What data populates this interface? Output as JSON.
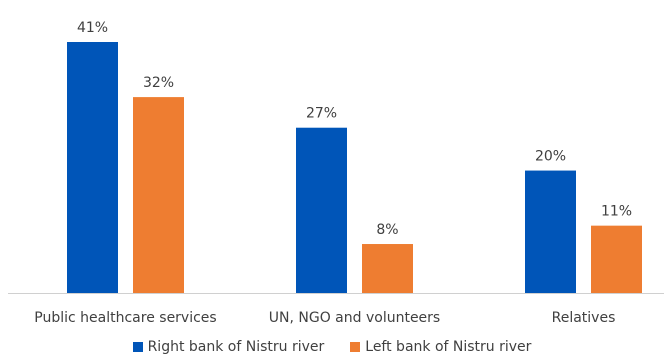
{
  "chart_data": {
    "type": "bar",
    "categories": [
      "Public healthcare services",
      "UN, NGO and volunteers",
      "Relatives"
    ],
    "series": [
      {
        "name": "Right bank of Nistru river",
        "values": [
          41,
          27,
          20
        ],
        "color": "#0055b8"
      },
      {
        "name": "Left bank of Nistru river",
        "values": [
          32,
          8,
          11
        ],
        "color": "#ee7d31"
      }
    ],
    "value_suffix": "%",
    "ylim": [
      0,
      41
    ],
    "grid": false,
    "legend_position": "bottom"
  }
}
